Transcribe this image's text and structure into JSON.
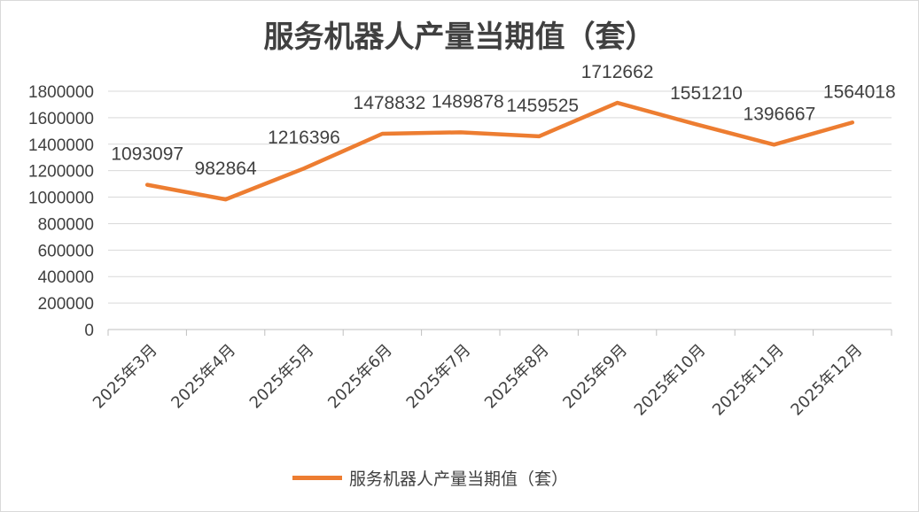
{
  "chart_data": {
    "type": "line",
    "title": "服务机器人产量当期值（套）",
    "categories": [
      "2025年3月",
      "2025年4月",
      "2025年5月",
      "2025年6月",
      "2025年7月",
      "2025年8月",
      "2025年9月",
      "2025年10月",
      "2025年11月",
      "2025年12月"
    ],
    "series": [
      {
        "name": "服务机器人产量当期值（套）",
        "color": "#ED7D31",
        "values": [
          1093097,
          982864,
          1216396,
          1478832,
          1489878,
          1459525,
          1712662,
          1551210,
          1396667,
          1564018
        ]
      }
    ],
    "data_labels": [
      "1093097",
      "982864",
      "1216396",
      "1478832",
      "1489878",
      "1459525",
      "1712662",
      "1551210",
      "1396667",
      "1564018"
    ],
    "y_ticks": [
      "0",
      "200000",
      "400000",
      "600000",
      "800000",
      "1000000",
      "1200000",
      "1400000",
      "1600000",
      "1800000"
    ],
    "ylim": [
      0,
      1800000
    ],
    "grid": true,
    "legend": "bottom"
  }
}
